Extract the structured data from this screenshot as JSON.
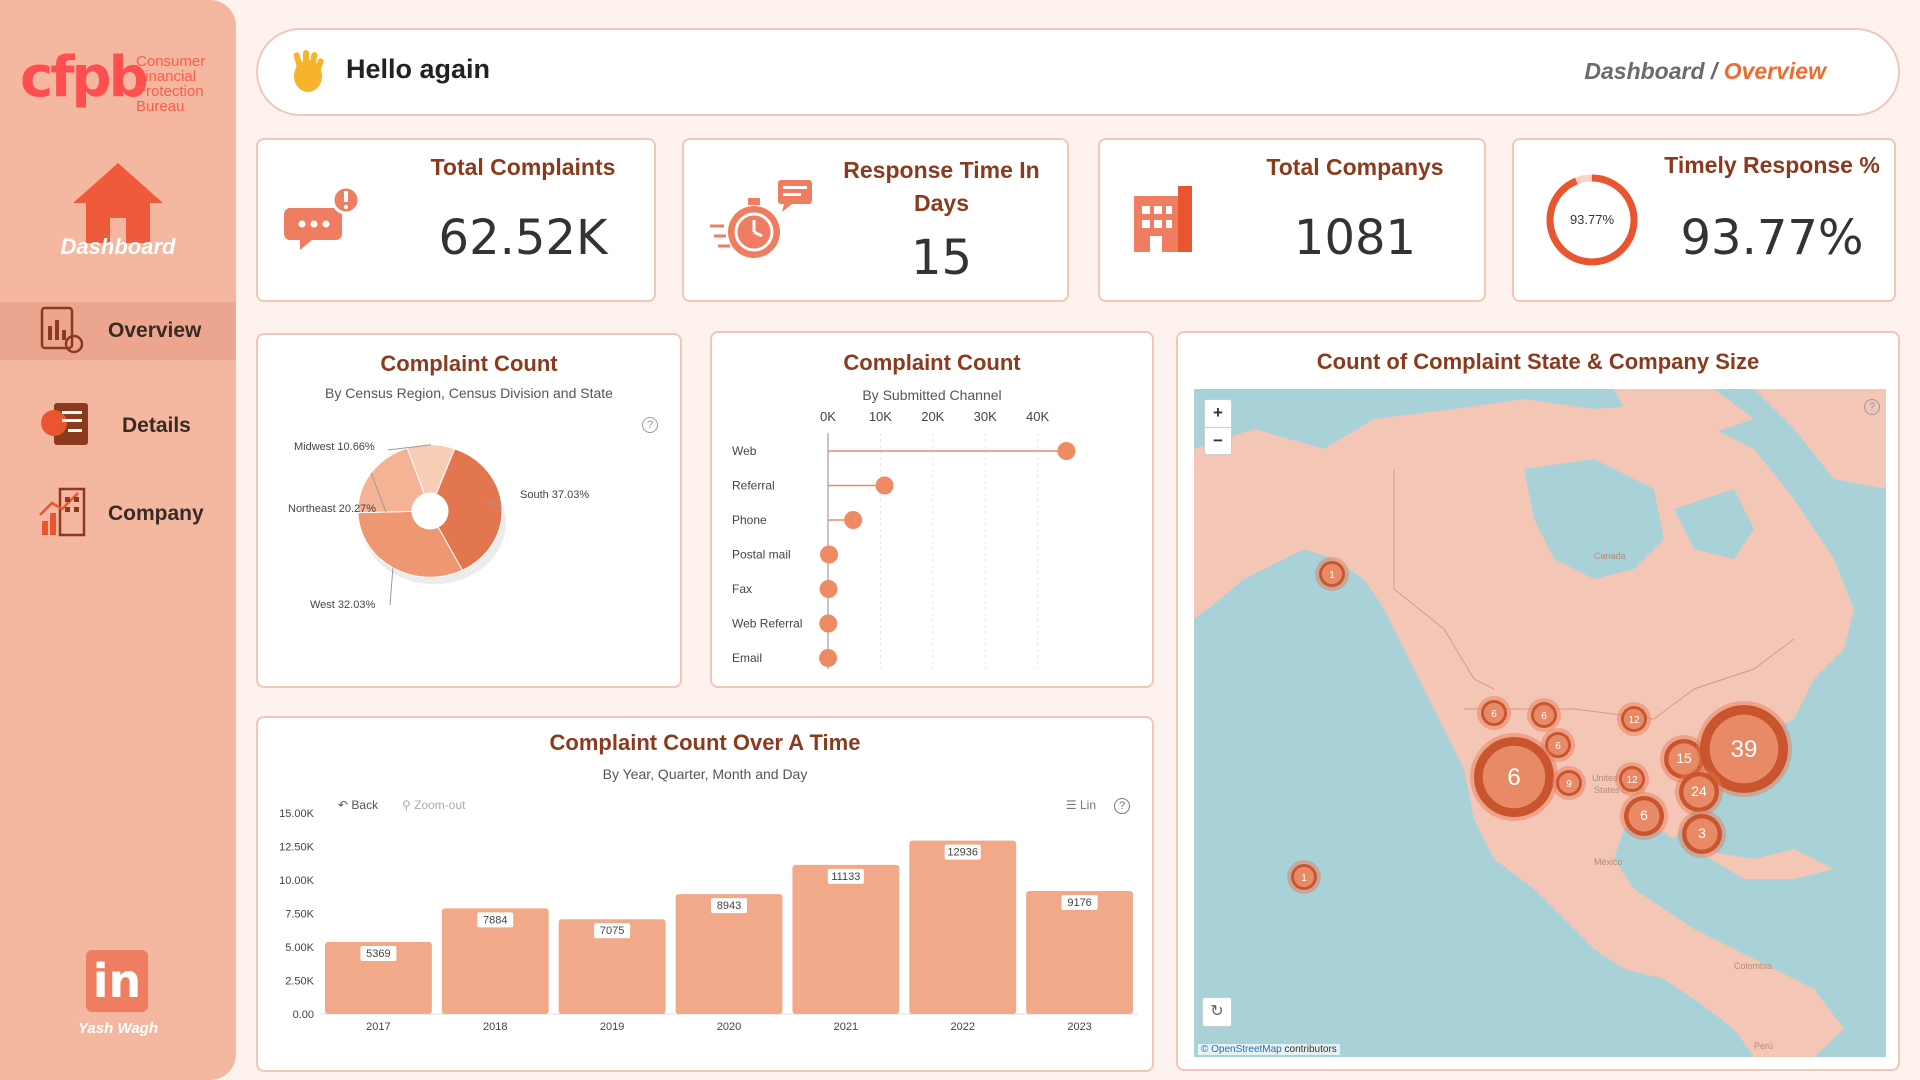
{
  "sidebar": {
    "logo_text": "cfpb",
    "logo_sub": [
      "Consumer",
      "Financial",
      "Protection",
      "Bureau"
    ],
    "home_label": "Dashboard",
    "nav": [
      {
        "label": "Overview",
        "icon": "report-icon",
        "active": true
      },
      {
        "label": "Details",
        "icon": "document-chart-icon",
        "active": false
      },
      {
        "label": "Company",
        "icon": "building-chart-icon",
        "active": false
      }
    ],
    "linkedin_text": "in",
    "author": "Yash Wagh"
  },
  "header": {
    "greeting": "Hello again",
    "crumb_root": "Dashboard",
    "crumb_sep": " / ",
    "crumb_current": "Overview"
  },
  "kpis": {
    "total_complaints": {
      "title": "Total Complaints",
      "value": "62.52K"
    },
    "response_time": {
      "title_line1": "Response Time In",
      "title_line2": "Days",
      "value": "15"
    },
    "total_companys": {
      "title": "Total Companys",
      "value": "1081"
    },
    "timely_response": {
      "title": "Timely Response %",
      "value": "93.77%",
      "gauge_label": "93.77%",
      "fraction": 0.9377
    }
  },
  "colors": {
    "accent": "#ef8b63",
    "dark": "#8b3a1e",
    "sidebar": "#f4b8a0",
    "bar": "#f2a98a"
  },
  "donut": {
    "title": "Complaint Count",
    "subtitle": "By Census Region, Census Division and State",
    "help": "?"
  },
  "channel": {
    "title": "Complaint Count",
    "subtitle": "By Submitted Channel"
  },
  "timeline": {
    "title": "Complaint Count Over A Time",
    "subtitle": "By Year, Quarter, Month and Day",
    "back": "Back",
    "zoom": "Zoom-out",
    "lin": "Lin",
    "help": "?"
  },
  "map": {
    "title": "Count of Complaint State & Company Size",
    "zoom_in": "+",
    "zoom_out": "−",
    "attribution_link": "© OpenStreetMap",
    "attribution_rest": " contributors",
    "labels": {
      "canada": "Canada",
      "us": "United\nStates of Am",
      "mexico": "México",
      "colombia": "Colombia",
      "peru": "Perú"
    },
    "clusters": [
      {
        "label": "1",
        "size": "s"
      },
      {
        "label": "6",
        "size": "s"
      },
      {
        "label": "6",
        "size": "s"
      },
      {
        "label": "6",
        "size": "s"
      },
      {
        "label": "6",
        "size": "xl"
      },
      {
        "label": "9",
        "size": "s"
      },
      {
        "label": "12",
        "size": "s"
      },
      {
        "label": "12",
        "size": "s"
      },
      {
        "label": "15",
        "size": "m"
      },
      {
        "label": "39",
        "size": "xxl"
      },
      {
        "label": "24",
        "size": "m"
      },
      {
        "label": "6",
        "size": "m"
      },
      {
        "label": "3",
        "size": "m"
      },
      {
        "label": "1",
        "size": "s"
      }
    ]
  },
  "chart_data": [
    {
      "type": "pie",
      "title": "Complaint Count",
      "subtitle": "By Census Region, Census Division and State",
      "slices": [
        {
          "label": "South",
          "value": 37.03,
          "display": "South 37.03%"
        },
        {
          "label": "West",
          "value": 32.03,
          "display": "West 32.03%"
        },
        {
          "label": "Northeast",
          "value": 20.27,
          "display": "Northeast 20.27%"
        },
        {
          "label": "Midwest",
          "value": 10.66,
          "display": "Midwest 10.66%"
        }
      ]
    },
    {
      "type": "scatter",
      "title": "Complaint Count",
      "subtitle": "By Submitted Channel",
      "categories": [
        "Web",
        "Referral",
        "Phone",
        "Postal mail",
        "Fax",
        "Web Referral",
        "Email"
      ],
      "values": [
        45500,
        10800,
        4800,
        200,
        100,
        50,
        20
      ],
      "xticks": [
        "0K",
        "10K",
        "20K",
        "30K",
        "40K"
      ],
      "xlim": [
        0,
        50000
      ]
    },
    {
      "type": "bar",
      "title": "Complaint Count Over A Time",
      "subtitle": "By Year, Quarter, Month and Day",
      "categories": [
        "2017",
        "2018",
        "2019",
        "2020",
        "2021",
        "2022",
        "2023"
      ],
      "values": [
        5369,
        7884,
        7075,
        8943,
        11133,
        12936,
        9176
      ],
      "yticks": [
        "0.00",
        "2.50K",
        "5.00K",
        "7.50K",
        "10.00K",
        "12.50K",
        "15.00K"
      ],
      "ylim": [
        0,
        15000
      ]
    }
  ]
}
